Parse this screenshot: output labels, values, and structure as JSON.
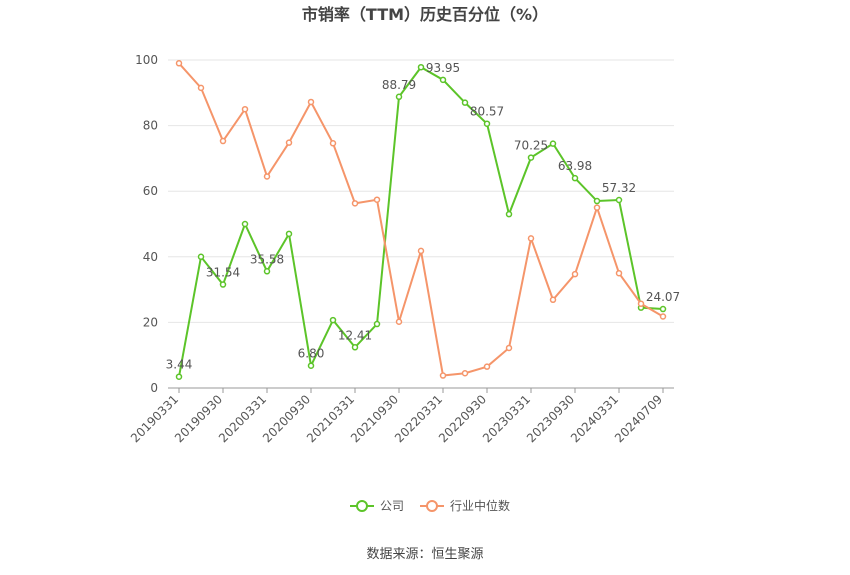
{
  "chart_data": {
    "type": "line",
    "title": "市销率（TTM）历史百分位（%）",
    "source": "数据来源：恒生聚源",
    "categories": [
      "20190331",
      null,
      "20190930",
      null,
      "20200331",
      null,
      "20200930",
      null,
      "20210331",
      null,
      "20210930",
      null,
      "20220331",
      null,
      "20220930",
      null,
      "20230331",
      null,
      "20230930",
      null,
      "20240331",
      null,
      "20240709"
    ],
    "series": [
      {
        "name": "公司",
        "color": "#5cc429",
        "values": [
          3.44,
          40,
          31.54,
          50,
          35.58,
          47,
          6.8,
          20.7,
          12.41,
          19.5,
          88.79,
          97.8,
          93.95,
          87,
          80.57,
          53,
          70.25,
          74.5,
          63.98,
          57,
          57.32,
          24.5,
          24.07
        ],
        "value_labels": [
          "3.44",
          null,
          "31.54",
          null,
          "35.58",
          null,
          "6.80",
          null,
          "12.41",
          null,
          "88.79",
          null,
          "93.95",
          null,
          "80.57",
          null,
          "70.25",
          null,
          "63.98",
          null,
          "57.32",
          null,
          "24.07"
        ]
      },
      {
        "name": "行业中位数",
        "color": "#f5956a",
        "values": [
          99,
          91.5,
          75.3,
          85,
          64.5,
          74.8,
          87.2,
          74.6,
          56.3,
          57.4,
          20.2,
          41.8,
          3.8,
          4.5,
          6.5,
          12.2,
          45.6,
          26.9,
          34.7,
          55,
          35,
          25.7,
          21.8
        ]
      }
    ],
    "ylim": [
      0,
      100
    ],
    "yticks": [
      0,
      20,
      40,
      60,
      80,
      100
    ],
    "grid": true
  }
}
